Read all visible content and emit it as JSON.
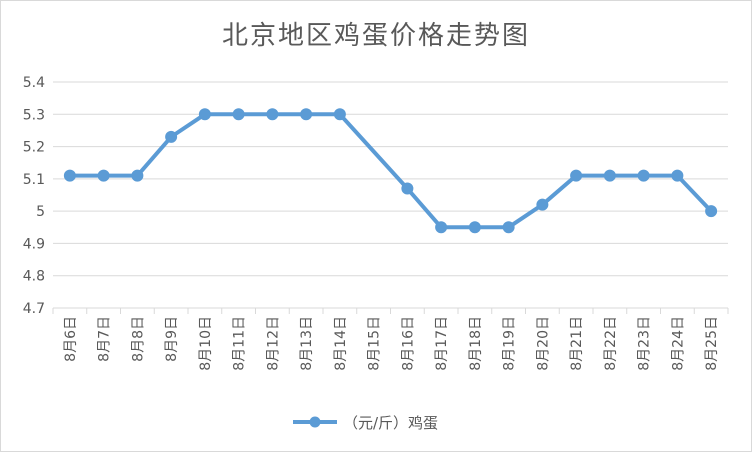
{
  "chart_data": {
    "type": "line",
    "title": "北京地区鸡蛋价格走势图",
    "categories": [
      "8月6日",
      "8月7日",
      "8月8日",
      "8月9日",
      "8月10日",
      "8月11日",
      "8月12日",
      "8月13日",
      "8月14日",
      "8月15日",
      "8月16日",
      "8月17日",
      "8月18日",
      "8月19日",
      "8月20日",
      "8月21日",
      "8月22日",
      "8月23日",
      "8月24日",
      "8月25日"
    ],
    "series": [
      {
        "name": "（元/斤）鸡蛋",
        "values": [
          5.11,
          5.11,
          5.11,
          5.23,
          5.3,
          5.3,
          5.3,
          5.3,
          5.3,
          null,
          5.07,
          4.95,
          4.95,
          4.95,
          5.02,
          5.11,
          5.11,
          5.11,
          5.11,
          5.0
        ],
        "color": "#5b9bd5"
      }
    ],
    "ylim": [
      4.7,
      5.4
    ],
    "yticks": [
      "4.7",
      "4.8",
      "4.9",
      "5",
      "5.1",
      "5.2",
      "5.3",
      "5.4"
    ],
    "grid": true,
    "legend": "bottom"
  }
}
